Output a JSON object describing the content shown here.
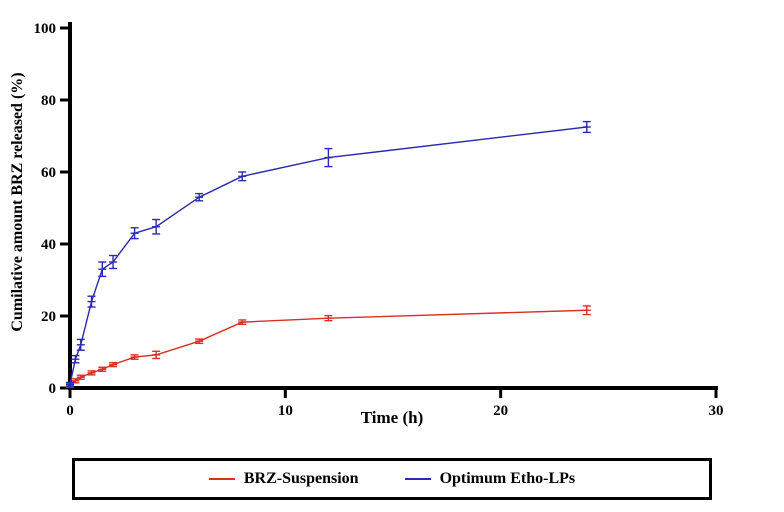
{
  "chart_data": {
    "type": "line",
    "title": "",
    "xlabel": "Time (h)",
    "ylabel": "Cumilative amount BRZ released (%)",
    "xlim": [
      0,
      30
    ],
    "ylim": [
      0,
      100
    ],
    "xticks": [
      0,
      10,
      20,
      30
    ],
    "yticks": [
      0,
      20,
      40,
      60,
      80,
      100
    ],
    "grid": false,
    "legend_position": "bottom",
    "series": [
      {
        "name": "BRZ-Suspension",
        "color": "#d93025",
        "points": [
          {
            "x": 0,
            "y": 0.8,
            "err": 0.4
          },
          {
            "x": 0.25,
            "y": 2.0,
            "err": 0.4
          },
          {
            "x": 0.5,
            "y": 3.0,
            "err": 0.5
          },
          {
            "x": 1,
            "y": 4.2,
            "err": 0.5
          },
          {
            "x": 1.5,
            "y": 5.2,
            "err": 0.5
          },
          {
            "x": 2,
            "y": 6.5,
            "err": 0.5
          },
          {
            "x": 3,
            "y": 8.6,
            "err": 0.6
          },
          {
            "x": 4,
            "y": 9.2,
            "err": 1.0
          },
          {
            "x": 6,
            "y": 13.0,
            "err": 0.6
          },
          {
            "x": 8,
            "y": 18.3,
            "err": 0.6
          },
          {
            "x": 12,
            "y": 19.4,
            "err": 0.7
          },
          {
            "x": 24,
            "y": 21.6,
            "err": 1.2
          }
        ]
      },
      {
        "name": "Optimum Etho-LPs",
        "color": "#2a2ab0",
        "points": [
          {
            "x": 0,
            "y": 1.0,
            "err": 0.5
          },
          {
            "x": 0.25,
            "y": 8.0,
            "err": 1.0
          },
          {
            "x": 0.5,
            "y": 12.0,
            "err": 1.5
          },
          {
            "x": 1,
            "y": 24.0,
            "err": 1.5
          },
          {
            "x": 1.5,
            "y": 33.0,
            "err": 2.0
          },
          {
            "x": 2,
            "y": 35.0,
            "err": 1.8
          },
          {
            "x": 3,
            "y": 43.0,
            "err": 1.5
          },
          {
            "x": 4,
            "y": 44.8,
            "err": 2.0
          },
          {
            "x": 6,
            "y": 53.0,
            "err": 1.0
          },
          {
            "x": 8,
            "y": 58.8,
            "err": 1.2
          },
          {
            "x": 12,
            "y": 64.0,
            "err": 2.5
          },
          {
            "x": 24,
            "y": 72.5,
            "err": 1.5
          }
        ]
      }
    ]
  }
}
